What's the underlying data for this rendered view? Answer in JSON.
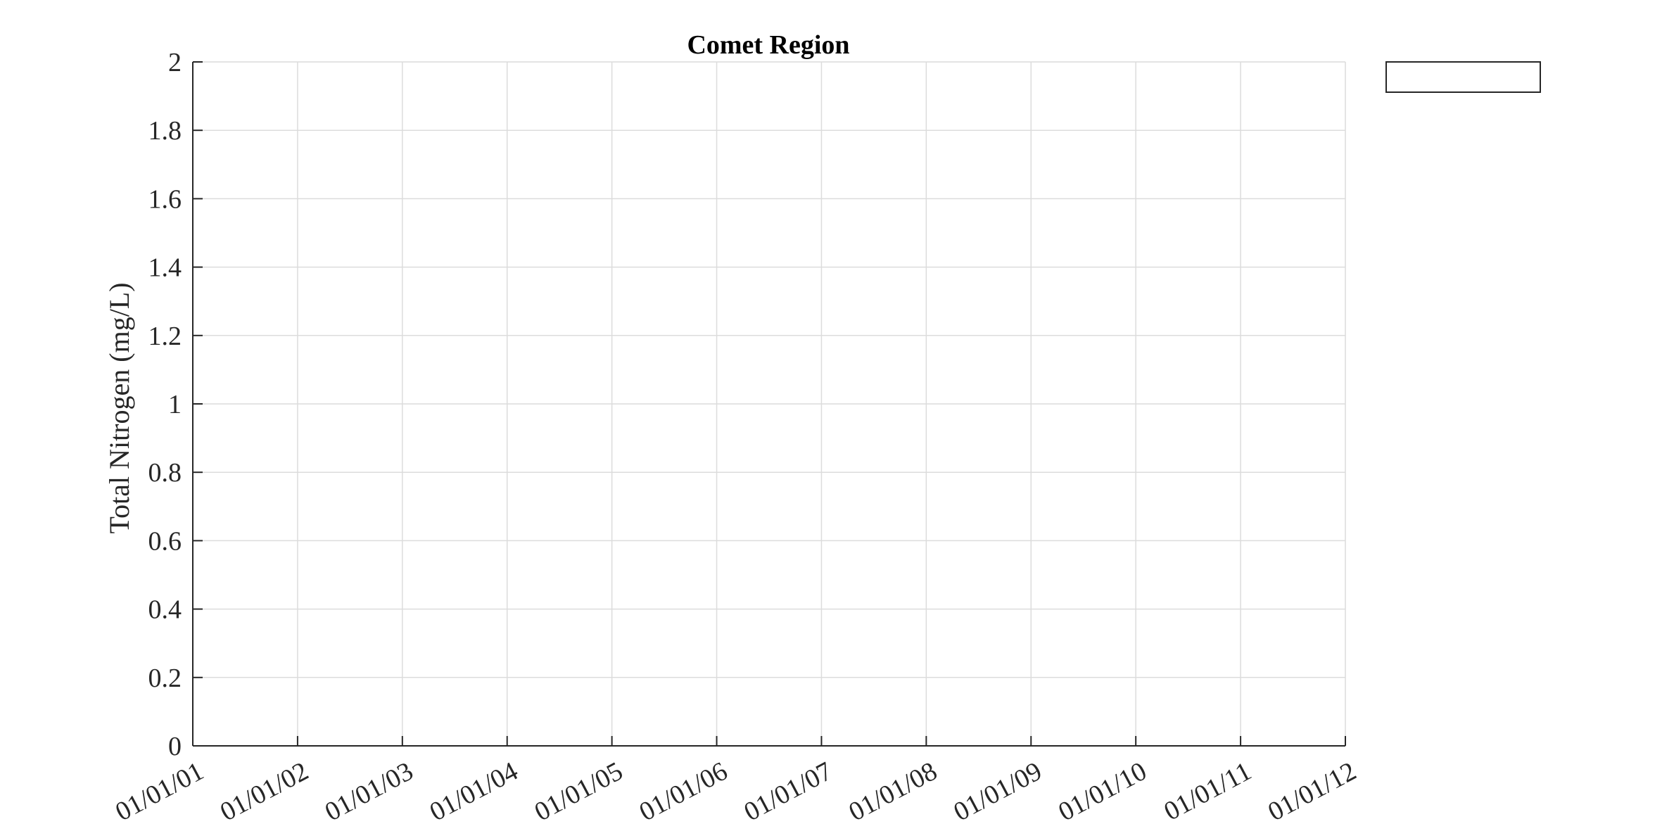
{
  "chart_data": {
    "type": "line",
    "title": "Comet Region",
    "xlabel": "",
    "ylabel": "Total Nitrogen (mg/L)",
    "x_tick_labels": [
      "01/01/01",
      "01/01/02",
      "01/01/03",
      "01/01/04",
      "01/01/05",
      "01/01/06",
      "01/01/07",
      "01/01/08",
      "01/01/09",
      "01/01/10",
      "01/01/11",
      "01/01/12"
    ],
    "y_tick_labels": [
      "0",
      "0.2",
      "0.4",
      "0.6",
      "0.8",
      "1",
      "1.2",
      "1.4",
      "1.6",
      "1.8",
      "2"
    ],
    "ylim": [
      0,
      2
    ],
    "xlim": [
      "01/01/01",
      "01/01/12"
    ],
    "series": [],
    "grid": true,
    "legend": {
      "position": "outside-top-right",
      "entries": []
    }
  },
  "colors": {
    "axis": "#262626",
    "grid": "#dcdcdc",
    "background": "#ffffff"
  }
}
